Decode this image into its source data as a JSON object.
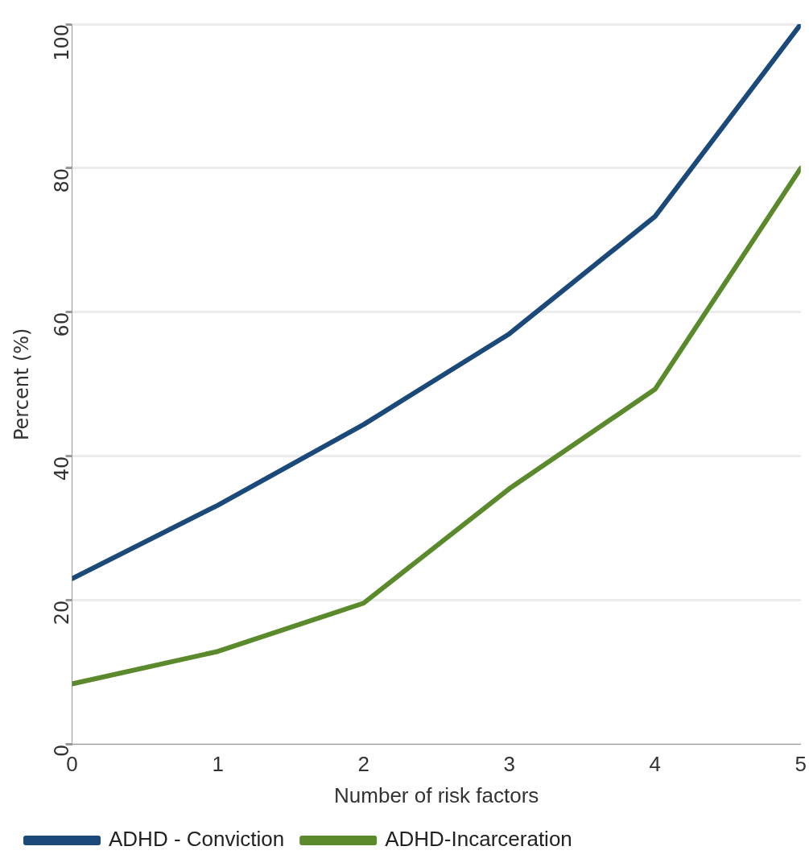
{
  "chart_data": {
    "type": "line",
    "xlabel": "Number of risk factors",
    "ylabel": "Percent (%)",
    "x": [
      0,
      1,
      2,
      3,
      4,
      5
    ],
    "series": [
      {
        "name": "ADHD - Conviction",
        "color": "#1b4a7a",
        "values": [
          23,
          33.2,
          44.4,
          57,
          73.3,
          100
        ]
      },
      {
        "name": "ADHD-Incarceration",
        "color": "#5a8a2c",
        "values": [
          8.4,
          12.9,
          19.6,
          35.5,
          49.3,
          80
        ]
      }
    ],
    "xlim": [
      0,
      5
    ],
    "xticks": [
      0,
      1,
      2,
      3,
      4,
      5
    ],
    "ylim": [
      0,
      100
    ],
    "yticks": [
      0,
      20,
      40,
      60,
      80,
      100
    ],
    "grid": "y",
    "legend": "bottom left",
    "marker": "none",
    "line_style": "solid"
  }
}
